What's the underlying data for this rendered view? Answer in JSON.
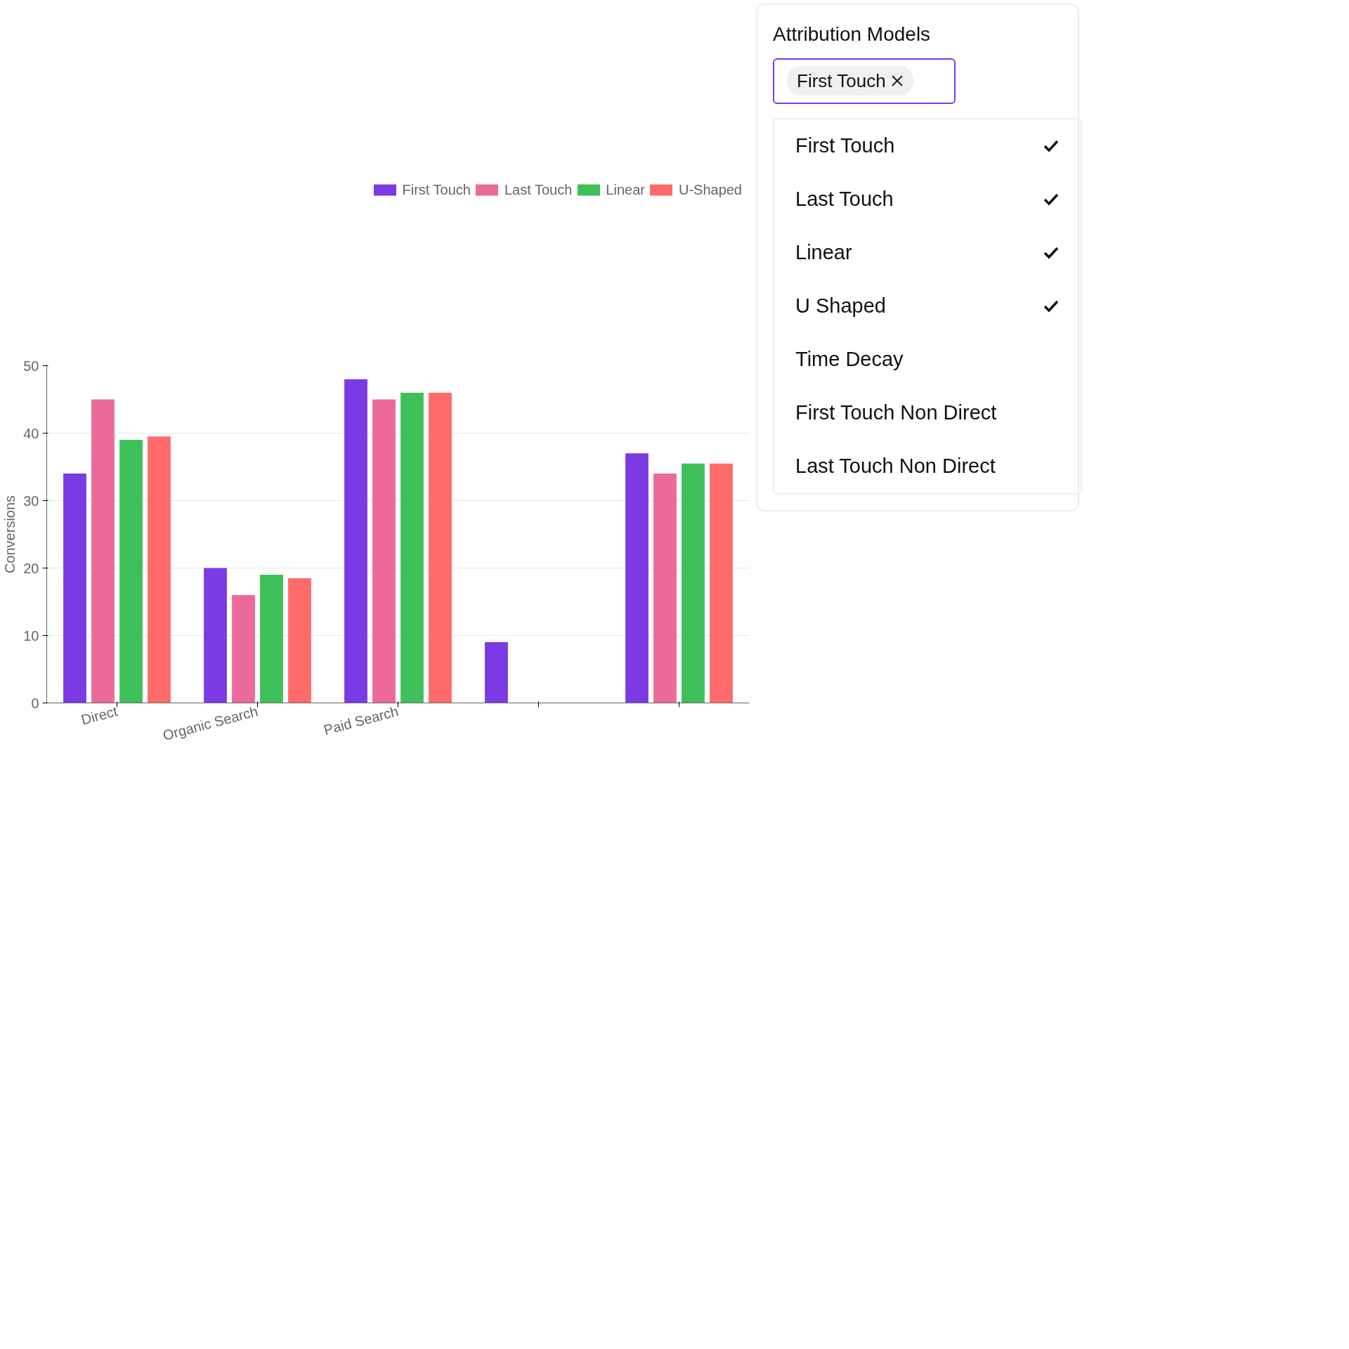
{
  "chart_data": {
    "type": "bar",
    "ylabel": "Conversions",
    "categories": [
      "Direct",
      "Organic Search",
      "Paid Search",
      null,
      null
    ],
    "series": [
      {
        "name": "First Touch",
        "color": "#7b3ae4",
        "values": [
          34,
          20,
          48,
          9,
          37
        ]
      },
      {
        "name": "Last Touch",
        "color": "#ec6a9a",
        "values": [
          45,
          16,
          45,
          null,
          34
        ]
      },
      {
        "name": "Linear",
        "color": "#3fbf5a",
        "values": [
          39,
          19,
          46,
          null,
          35.5
        ]
      },
      {
        "name": "U-Shaped",
        "color": "#ff6b6b",
        "values": [
          39.5,
          18.5,
          46,
          null,
          35.5
        ]
      }
    ],
    "ylim": [
      0,
      50
    ],
    "yticks": [
      0,
      10,
      20,
      30,
      40,
      50
    ],
    "grid": "y",
    "legend": "top right",
    "annotations": [
      "Attribution Models",
      "First Touch",
      "First Touch",
      "Last Touch",
      "Linear",
      "U Shaped",
      "Time Decay",
      "First Touch Non Direct",
      "Last Touch Non Direct"
    ]
  }
}
